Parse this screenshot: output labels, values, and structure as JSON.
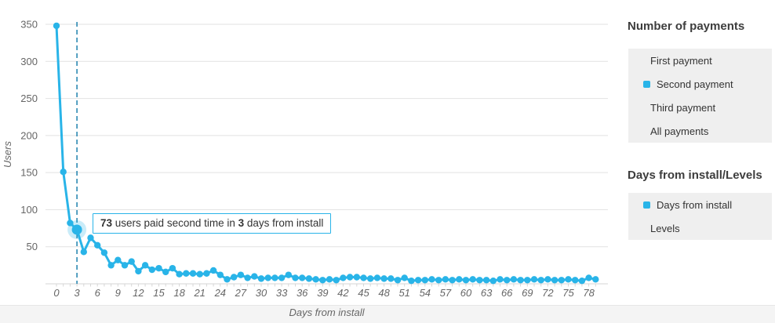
{
  "chart_data": {
    "type": "line",
    "title": "",
    "xlabel": "Days from install",
    "ylabel": "Users",
    "series_name": "Second payment",
    "x": [
      0,
      1,
      2,
      3,
      4,
      5,
      6,
      7,
      8,
      9,
      10,
      11,
      12,
      13,
      14,
      15,
      16,
      17,
      18,
      19,
      20,
      21,
      22,
      23,
      24,
      25,
      26,
      27,
      28,
      29,
      30,
      31,
      32,
      33,
      34,
      35,
      36,
      37,
      38,
      39,
      40,
      41,
      42,
      43,
      44,
      45,
      46,
      47,
      48,
      49,
      50,
      51,
      52,
      53,
      54,
      55,
      56,
      57,
      58,
      59,
      60,
      61,
      62,
      63,
      64,
      65,
      66,
      67,
      68,
      69,
      70,
      71,
      72,
      73,
      74,
      75,
      76,
      77,
      78,
      79
    ],
    "values": [
      348,
      151,
      82,
      73,
      43,
      62,
      52,
      42,
      25,
      32,
      25,
      30,
      17,
      25,
      19,
      21,
      16,
      21,
      13,
      14,
      14,
      13,
      14,
      18,
      12,
      6,
      9,
      12,
      8,
      10,
      7,
      8,
      8,
      8,
      12,
      8,
      8,
      7,
      6,
      5,
      6,
      5,
      8,
      9,
      9,
      8,
      7,
      8,
      7,
      7,
      5,
      8,
      4,
      5,
      5,
      6,
      5,
      6,
      5,
      6,
      5,
      6,
      5,
      5,
      4,
      6,
      5,
      6,
      5,
      5,
      6,
      5,
      6,
      5,
      5,
      6,
      5,
      4,
      8,
      6
    ],
    "y_ticks": [
      50,
      100,
      150,
      200,
      250,
      300,
      350
    ],
    "x_ticks": [
      0,
      3,
      6,
      9,
      12,
      15,
      18,
      21,
      24,
      27,
      30,
      33,
      36,
      39,
      42,
      45,
      48,
      51,
      54,
      57,
      60,
      63,
      66,
      69,
      72,
      75,
      78
    ],
    "ylim": [
      0,
      350
    ],
    "xlim": [
      0,
      79
    ],
    "grid": "horizontal",
    "legend_position": "right",
    "annotation": {
      "day": 3,
      "value": 73,
      "text": "73 users paid second time in 3 days from install"
    }
  },
  "tooltip": {
    "value": "73",
    "mid": " users paid second time in ",
    "days": "3",
    "tail": " days from install"
  },
  "axis": {
    "ylabel": "Users",
    "xlabel": "Days from install"
  },
  "sidebar": {
    "groups": [
      {
        "title": "Number of payments",
        "items": [
          {
            "label": "First payment",
            "active": false
          },
          {
            "label": "Second payment",
            "active": true
          },
          {
            "label": "Third payment",
            "active": false
          },
          {
            "label": "All payments",
            "active": false
          }
        ]
      },
      {
        "title": "Days from install/Levels",
        "items": [
          {
            "label": "Days from install",
            "active": true
          },
          {
            "label": "Levels",
            "active": false
          }
        ]
      }
    ]
  },
  "colors": {
    "line": "#29b4e8",
    "marker": "#29b4e8",
    "halo": "rgba(41,180,232,0.25)",
    "dashed_line": "#1f81ad",
    "grid": "#e2e2e2",
    "axis_line": "#d6d6d6",
    "tick_label": "#666666",
    "panel_bg": "#efefef",
    "tooltip_border": "#29b4e8"
  }
}
